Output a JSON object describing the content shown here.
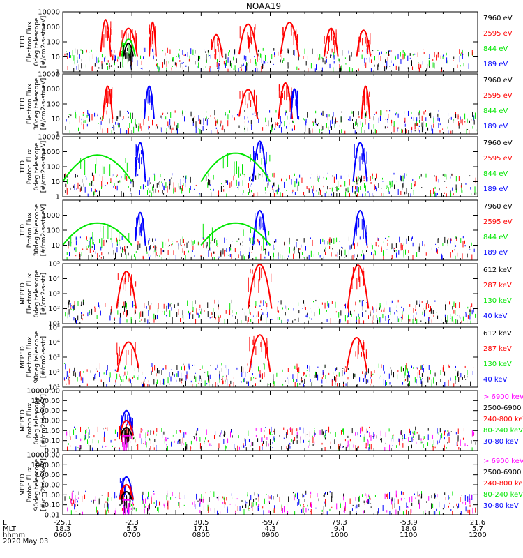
{
  "title": "NOAA19",
  "date_label": "2020 May 03",
  "colors": {
    "black": "#000000",
    "red": "#ff0000",
    "green": "#00e600",
    "blue": "#0000ff",
    "magenta": "#ff00ff",
    "axis": "#000000"
  },
  "x_axis": {
    "row_labels": [
      "L",
      "MLT",
      "hhmm"
    ],
    "L_values": [
      "-25.1",
      "-2.3",
      "30.5",
      "-59.7",
      "79.3",
      "-53.9",
      "21.6"
    ],
    "MLT_values": [
      "18.3",
      "5.5",
      "17.1",
      "4.3",
      "9.4",
      "18.0",
      "5.7"
    ],
    "hhmm_values": [
      "0600",
      "0700",
      "0800",
      "0900",
      "1000",
      "1100",
      "1200"
    ]
  },
  "chart_data": [
    {
      "type": "line",
      "ylabel": [
        "TED",
        "Electron Flux",
        "0deg telescope",
        "[#/cm2-s-str-eV]"
      ],
      "yscale": "log",
      "yticks": [
        "1",
        "10",
        "100",
        "1000",
        "10000"
      ],
      "ylim": [
        1,
        10000
      ],
      "legend": [
        {
          "name": "7960 eV",
          "color": "black"
        },
        {
          "name": "2595 eV",
          "color": "red"
        },
        {
          "name": "844 eV",
          "color": "green"
        },
        {
          "name": "189 eV",
          "color": "blue"
        }
      ],
      "passes": [
        {
          "series": "red",
          "x": [
            6.55,
            6.62,
            6.7
          ],
          "peak": 3000
        },
        {
          "series": "red",
          "x": [
            6.82,
            6.95,
            7.08
          ],
          "peak": 800
        },
        {
          "series": "red",
          "x": [
            7.25,
            7.3,
            7.35
          ],
          "peak": 2000
        },
        {
          "series": "red",
          "x": [
            8.15,
            8.22,
            8.32
          ],
          "peak": 300
        },
        {
          "series": "red",
          "x": [
            8.55,
            8.68,
            8.82
          ],
          "peak": 1500
        },
        {
          "series": "red",
          "x": [
            9.15,
            9.28,
            9.42
          ],
          "peak": 2000
        },
        {
          "series": "red",
          "x": [
            9.78,
            9.88,
            9.98
          ],
          "peak": 800
        },
        {
          "series": "red",
          "x": [
            10.25,
            10.35,
            10.45
          ],
          "peak": 600
        },
        {
          "series": "green",
          "x": [
            6.85,
            6.95,
            7.05
          ],
          "peak": 150
        },
        {
          "series": "black",
          "x": [
            6.88,
            6.95,
            7.02
          ],
          "peak": 80
        }
      ]
    },
    {
      "type": "line",
      "ylabel": [
        "TED",
        "Electron Flux",
        "30deg telescope",
        "[#/cm2-s-str-eV]"
      ],
      "yscale": "log",
      "yticks": [
        "1",
        "10",
        "100",
        "1000",
        "10000"
      ],
      "ylim": [
        1,
        10000
      ],
      "legend": [
        {
          "name": "7960 eV",
          "color": "black"
        },
        {
          "name": "2595 eV",
          "color": "red"
        },
        {
          "name": "844 eV",
          "color": "green"
        },
        {
          "name": "189 eV",
          "color": "blue"
        }
      ],
      "passes": [
        {
          "series": "red",
          "x": [
            6.58,
            6.65,
            6.72
          ],
          "peak": 1500
        },
        {
          "series": "red",
          "x": [
            8.55,
            8.68,
            8.82
          ],
          "peak": 900
        },
        {
          "series": "red",
          "x": [
            9.12,
            9.22,
            9.32
          ],
          "peak": 2500
        },
        {
          "series": "red",
          "x": [
            10.32,
            10.38,
            10.44
          ],
          "peak": 1500
        },
        {
          "series": "blue",
          "x": [
            7.18,
            7.25,
            7.32
          ],
          "peak": 1500
        },
        {
          "series": "blue",
          "x": [
            9.3,
            9.35,
            9.4
          ],
          "peak": 1000
        }
      ]
    },
    {
      "type": "line",
      "ylabel": [
        "TED",
        "Proton Flux",
        "0deg telescope",
        "[#/cm2-s-str-eV]"
      ],
      "yscale": "log",
      "yticks": [
        "1",
        "10",
        "100",
        "1000",
        "10000"
      ],
      "ylim": [
        1,
        10000
      ],
      "legend": [
        {
          "name": "7960 eV",
          "color": "black"
        },
        {
          "name": "2595 eV",
          "color": "red"
        },
        {
          "name": "844 eV",
          "color": "green"
        },
        {
          "name": "189 eV",
          "color": "blue"
        }
      ],
      "passes": [
        {
          "series": "blue",
          "x": [
            7.05,
            7.12,
            7.2
          ],
          "peak": 4000
        },
        {
          "series": "blue",
          "x": [
            8.75,
            8.85,
            8.95
          ],
          "peak": 5000
        },
        {
          "series": "blue",
          "x": [
            10.2,
            10.3,
            10.4
          ],
          "peak": 4000
        },
        {
          "series": "green",
          "x": [
            6.0,
            6.5,
            7.0
          ],
          "peak": 600
        },
        {
          "series": "green",
          "x": [
            8.0,
            8.5,
            9.0
          ],
          "peak": 800
        }
      ]
    },
    {
      "type": "line",
      "ylabel": [
        "TED",
        "Proton Flux",
        "30deg telescope",
        "[#/cm2-s-str-eV]"
      ],
      "yscale": "log",
      "yticks": [
        "10",
        "100",
        "1000"
      ],
      "ylim": [
        1,
        10000
      ],
      "legend": [
        {
          "name": "7960 eV",
          "color": "black"
        },
        {
          "name": "2595 eV",
          "color": "red"
        },
        {
          "name": "844 eV",
          "color": "green"
        },
        {
          "name": "189 eV",
          "color": "blue"
        }
      ],
      "passes": [
        {
          "series": "blue",
          "x": [
            7.05,
            7.12,
            7.2
          ],
          "peak": 1500
        },
        {
          "series": "blue",
          "x": [
            8.75,
            8.85,
            8.95
          ],
          "peak": 2000
        },
        {
          "series": "blue",
          "x": [
            10.2,
            10.3,
            10.4
          ],
          "peak": 2000
        },
        {
          "series": "green",
          "x": [
            6.0,
            6.5,
            7.0
          ],
          "peak": 300
        },
        {
          "series": "green",
          "x": [
            8.0,
            8.5,
            9.0
          ],
          "peak": 300
        }
      ]
    },
    {
      "type": "line",
      "ylabel": [
        "MEPED",
        "Electron Flux",
        "0deg telescope",
        "[#/cm2-s-str]"
      ],
      "yscale": "log",
      "yticks": [
        "10¹",
        "10²",
        "10³",
        "10⁴",
        "10⁵"
      ],
      "ylim": [
        10,
        100000
      ],
      "legend": [
        {
          "name": "612 keV",
          "color": "black"
        },
        {
          "name": "287 keV",
          "color": "red"
        },
        {
          "name": "130 keV",
          "color": "green"
        },
        {
          "name": "40 keV",
          "color": "blue"
        }
      ],
      "passes": [
        {
          "series": "red",
          "x": [
            6.78,
            6.92,
            7.06
          ],
          "peak": 30000
        },
        {
          "series": "red",
          "x": [
            8.68,
            8.85,
            9.02
          ],
          "peak": 90000
        },
        {
          "series": "red",
          "x": [
            10.12,
            10.27,
            10.42
          ],
          "peak": 80000
        }
      ]
    },
    {
      "type": "line",
      "ylabel": [
        "MEPED",
        "Electron Flux",
        "90deg telescope",
        "[#/cm2-s-str]"
      ],
      "yscale": "log",
      "yticks": [
        "10¹",
        "10²",
        "10³",
        "10⁴",
        "10⁵"
      ],
      "ylim": [
        10,
        100000
      ],
      "legend": [
        {
          "name": "612 keV",
          "color": "black"
        },
        {
          "name": "287 keV",
          "color": "red"
        },
        {
          "name": "130 keV",
          "color": "green"
        },
        {
          "name": "40 keV",
          "color": "blue"
        }
      ],
      "passes": [
        {
          "series": "red",
          "x": [
            6.78,
            6.95,
            7.1
          ],
          "peak": 10000
        },
        {
          "series": "red",
          "x": [
            8.7,
            8.85,
            9.0
          ],
          "peak": 30000
        },
        {
          "series": "red",
          "x": [
            10.1,
            10.25,
            10.4
          ],
          "peak": 20000
        }
      ]
    },
    {
      "type": "line",
      "ylabel": [
        "MEPED",
        "Proton Flux",
        "0deg telescope",
        "[#/cm2-s-sr-keV]"
      ],
      "yscale": "log",
      "yticks": [
        "0.01",
        "0.10",
        "1.00",
        "10.00",
        "100.00",
        "1000.00",
        "10000.00"
      ],
      "ylim": [
        0.01,
        10000
      ],
      "legend": [
        {
          "name": "> 6900 keV",
          "color": "magenta"
        },
        {
          "name": "2500-6900",
          "color": "black"
        },
        {
          "name": "240-800 keV",
          "color": "red"
        },
        {
          "name": "80-240 keV",
          "color": "green"
        },
        {
          "name": "30-80 keV",
          "color": "blue"
        }
      ],
      "passes": [
        {
          "series": "blue",
          "x": [
            6.82,
            6.92,
            7.02
          ],
          "peak": 100
        },
        {
          "series": "red",
          "x": [
            6.82,
            6.92,
            7.02
          ],
          "peak": 10
        },
        {
          "series": "black",
          "x": [
            6.84,
            6.92,
            7.0
          ],
          "peak": 2
        },
        {
          "series": "magenta",
          "x": [
            6.86,
            6.92,
            6.98
          ],
          "peak": 0.3
        }
      ]
    },
    {
      "type": "line",
      "ylabel": [
        "MEPED",
        "Proton Flux",
        "90deg telescope",
        "[#/cm2-s-sr-keV]"
      ],
      "yscale": "log",
      "yticks": [
        "0.01",
        "0.10",
        "1.00",
        "10.00",
        "100.00",
        "1000.00",
        "10000.00"
      ],
      "ylim": [
        0.01,
        10000
      ],
      "legend": [
        {
          "name": "> 6900 keV",
          "color": "magenta"
        },
        {
          "name": "2500-6900",
          "color": "black"
        },
        {
          "name": "240-800 keV",
          "color": "red"
        },
        {
          "name": "80-240 keV",
          "color": "green"
        },
        {
          "name": "30-80 keV",
          "color": "blue"
        }
      ],
      "passes": [
        {
          "series": "blue",
          "x": [
            6.82,
            6.92,
            7.02
          ],
          "peak": 60
        },
        {
          "series": "red",
          "x": [
            6.82,
            6.92,
            7.02
          ],
          "peak": 10
        },
        {
          "series": "black",
          "x": [
            6.84,
            6.92,
            7.0
          ],
          "peak": 2
        },
        {
          "series": "magenta",
          "x": [
            6.86,
            6.92,
            6.98
          ],
          "peak": 0.3
        }
      ]
    }
  ]
}
